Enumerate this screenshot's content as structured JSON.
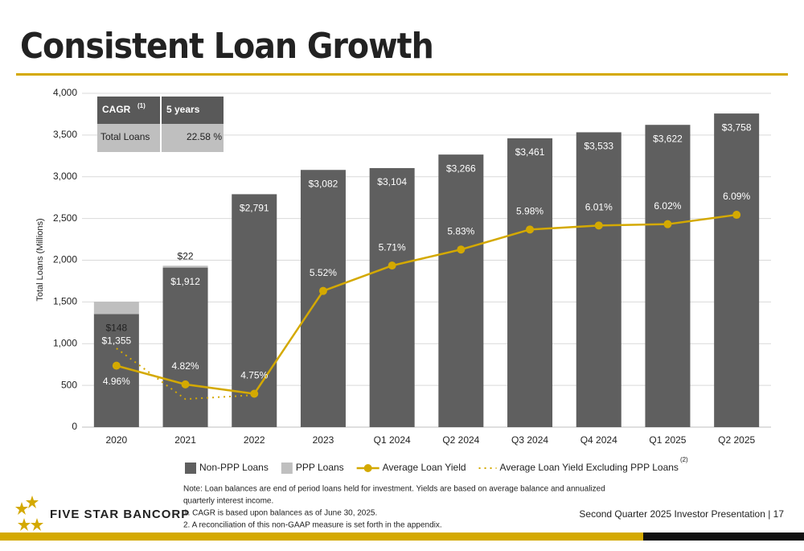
{
  "chart_data": {
    "type": "bar",
    "title": "Consistent Loan Growth",
    "y_label": "Total Loans (Millions)",
    "categories": [
      "2020",
      "2021",
      "2022",
      "2023",
      "Q1 2024",
      "Q2 2024",
      "Q3 2024",
      "Q4 2024",
      "Q1 2025",
      "Q2 2025"
    ],
    "series": [
      {
        "name": "Non-PPP Loans",
        "color": "#5f5f5f",
        "values": [
          1355,
          1912,
          2791,
          3082,
          3104,
          3266,
          3461,
          3533,
          3622,
          3758
        ],
        "value_labels": [
          "$1,355",
          "$1,912",
          "$2,791",
          "$3,082",
          "$3,104",
          "$3,266",
          "$3,461",
          "$3,533",
          "$3,622",
          "$3,758"
        ]
      },
      {
        "name": "PPP Loans",
        "color": "#bfbfbf",
        "values": [
          148,
          22,
          null,
          null,
          null,
          null,
          null,
          null,
          null,
          null
        ],
        "value_labels": [
          "$148",
          "$22",
          null,
          null,
          null,
          null,
          null,
          null,
          null,
          null
        ]
      },
      {
        "name": "Average Loan Yield",
        "color": "#d4a900",
        "type": "line",
        "axis": "y2",
        "values": [
          4.96,
          4.82,
          4.75,
          5.52,
          5.71,
          5.83,
          5.98,
          6.01,
          6.02,
          6.09
        ],
        "value_labels": [
          "4.96%",
          "4.82%",
          "4.75%",
          "5.52%",
          "5.71%",
          "5.83%",
          "5.98%",
          "6.01%",
          "6.02%",
          "6.09%"
        ]
      },
      {
        "name": "Average Loan Yield Excluding PPP Loans",
        "color": "#d4a900",
        "type": "dotted",
        "axis": "y2",
        "values": [
          5.09,
          4.71,
          4.74,
          null,
          null,
          null,
          null,
          null,
          null,
          null
        ]
      }
    ],
    "legend_note": "(2)",
    "ylim": [
      0,
      4000
    ],
    "yticks": [
      0,
      {
        "value": 500,
        "label": "500"
      },
      {
        "value": 1000,
        "label": "1,000"
      },
      {
        "value": 1500,
        "label": "1,500"
      },
      {
        "value": 2000,
        "label": "2,000"
      },
      {
        "value": 2500,
        "label": "2,500"
      },
      {
        "value": 3000,
        "label": "3,000"
      },
      {
        "value": 3500,
        "label": "3,500"
      },
      {
        "value": 4000,
        "label": "4,000"
      }
    ],
    "y2lim": [
      4.5,
      7.0
    ],
    "grid": true
  },
  "cagr_table": {
    "header": [
      "CAGR",
      "5 years"
    ],
    "header_note": "(1)",
    "row": [
      "Total Loans",
      "22.58 %"
    ]
  },
  "notes": [
    "Note: Loan balances are end of period loans held for investment. Yields are based on average balance and annualized",
    "quarterly interest income.",
    "1.    CAGR is based upon balances as of June 30, 2025.",
    "2.    A reconciliation of this non-GAAP measure is set forth in the appendix."
  ],
  "logo": "FIVE STAR BANCORP",
  "footer": "Second Quarter 2025 Investor Presentation |  17"
}
